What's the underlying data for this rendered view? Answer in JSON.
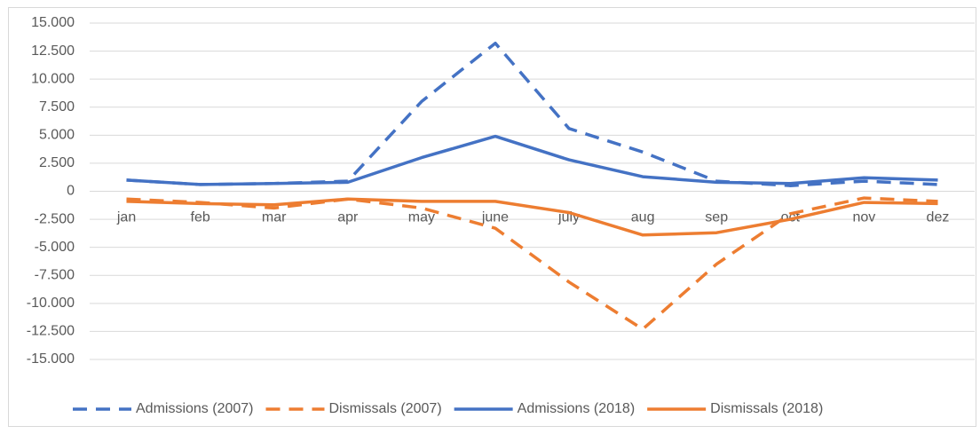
{
  "chart_data": {
    "type": "line",
    "categories": [
      "jan",
      "feb",
      "mar",
      "apr",
      "may",
      "june",
      "july",
      "aug",
      "sep",
      "oct",
      "nov",
      "dez"
    ],
    "series": [
      {
        "name": "Admissions (2007)",
        "color": "#4472c4",
        "line_style": "dashed",
        "values": [
          1000,
          600,
          700,
          900,
          8000,
          13200,
          5600,
          3500,
          900,
          500,
          900,
          600
        ]
      },
      {
        "name": "Dismissals (2007)",
        "color": "#ed7d31",
        "line_style": "dashed",
        "values": [
          -700,
          -1000,
          -1500,
          -700,
          -1500,
          -3300,
          -8100,
          -12300,
          -6500,
          -2000,
          -600,
          -900
        ]
      },
      {
        "name": "Admissions (2018)",
        "color": "#4472c4",
        "line_style": "solid",
        "values": [
          1000,
          600,
          700,
          800,
          3000,
          4900,
          2800,
          1300,
          800,
          700,
          1200,
          1000
        ]
      },
      {
        "name": "Dismissals (2018)",
        "color": "#ed7d31",
        "line_style": "solid",
        "values": [
          -900,
          -1100,
          -1200,
          -700,
          -900,
          -900,
          -1900,
          -3900,
          -3700,
          -2500,
          -1000,
          -1100
        ]
      }
    ],
    "ylim": [
      -15000,
      15000
    ],
    "yticks": [
      {
        "value": 15000,
        "label": "15.000"
      },
      {
        "value": 12500,
        "label": "12.500"
      },
      {
        "value": 10000,
        "label": "10.000"
      },
      {
        "value": 7500,
        "label": "7.500"
      },
      {
        "value": 5000,
        "label": "5.000"
      },
      {
        "value": 2500,
        "label": "2.500"
      },
      0,
      {
        "value": -2500,
        "label": "-2.500"
      },
      {
        "value": -5000,
        "label": "-5.000"
      },
      {
        "value": -7500,
        "label": "-7.500"
      },
      {
        "value": -10000,
        "label": "-10.000"
      },
      {
        "value": -12500,
        "label": "-12.500"
      },
      {
        "value": -15000,
        "label": "-15.000"
      }
    ],
    "grid": true,
    "legend": "bottom"
  }
}
